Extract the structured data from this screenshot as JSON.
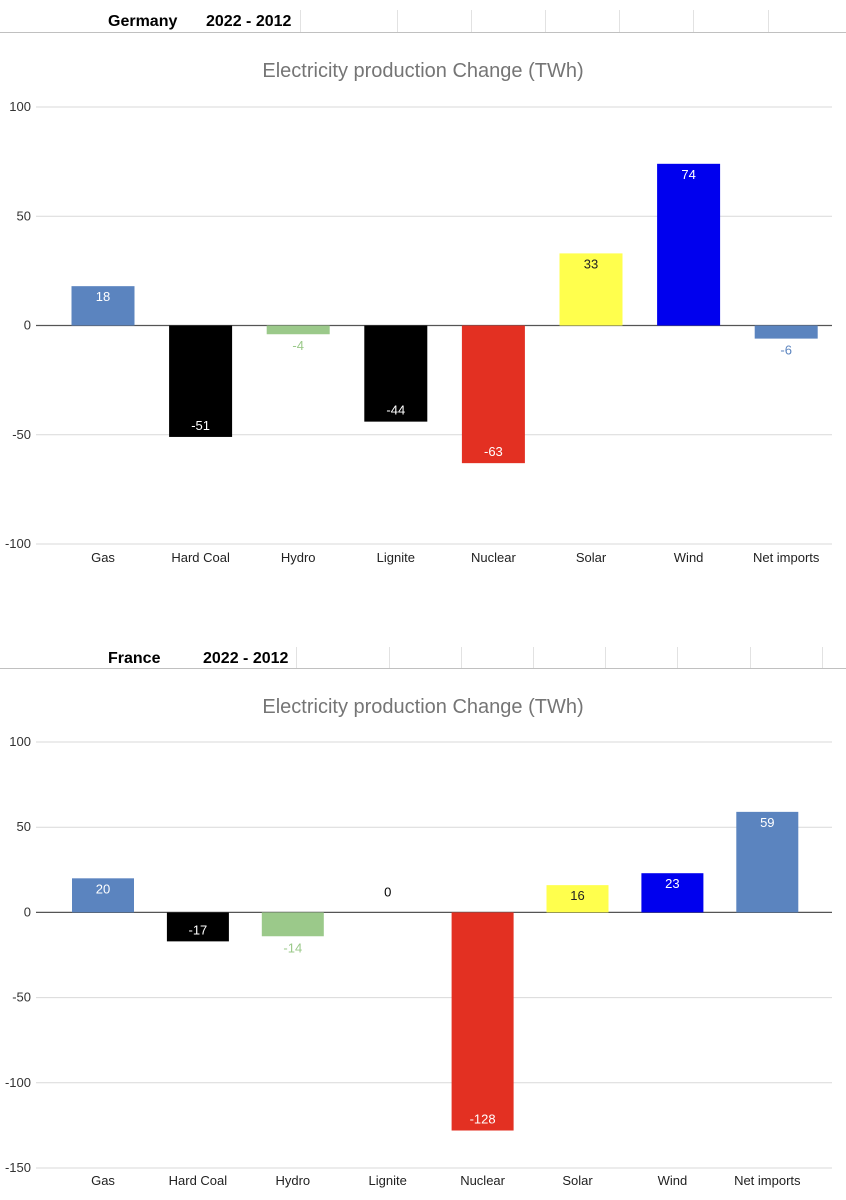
{
  "charts_header": [
    {
      "country": "Germany",
      "period": "2022 - 2012"
    },
    {
      "country": "France",
      "period": "2022 - 2012"
    }
  ],
  "colors": {
    "gas": "#5b84bf",
    "hard_coal": "#000000",
    "hydro": "#9bc98a",
    "lignite": "#000000",
    "nuclear": "#e33022",
    "solar": "#ffff4d",
    "wind": "#0000ee",
    "net_imports": "#5b84bf"
  },
  "chart_data": [
    {
      "type": "bar",
      "title": "Electricity production Change (TWh)",
      "xlabel": "",
      "ylabel": "",
      "categories": [
        "Gas",
        "Hard Coal",
        "Hydro",
        "Lignite",
        "Nuclear",
        "Solar",
        "Wind",
        "Net imports"
      ],
      "values": [
        18,
        -51,
        -4,
        -44,
        -63,
        33,
        74,
        -6
      ],
      "data_labels": [
        "18",
        "-51",
        "-4",
        "-44",
        "-63",
        "33",
        "74",
        "-6"
      ],
      "ylim": [
        -100,
        100
      ],
      "yticks": [
        100,
        50,
        0,
        -50,
        -100
      ],
      "ytick_labels": [
        "100",
        "50",
        "0",
        "-50",
        "-100"
      ],
      "grid": true,
      "legend": "none"
    },
    {
      "type": "bar",
      "title": "Electricity production Change (TWh)",
      "xlabel": "",
      "ylabel": "",
      "categories": [
        "Gas",
        "Hard Coal",
        "Hydro",
        "Lignite",
        "Nuclear",
        "Solar",
        "Wind",
        "Net imports"
      ],
      "values": [
        20,
        -17,
        -14,
        0,
        -128,
        16,
        23,
        59
      ],
      "data_labels": [
        "20",
        "-17",
        "-14",
        "0",
        "-128",
        "16",
        "23",
        "59"
      ],
      "ylim": [
        -150,
        100
      ],
      "yticks": [
        100,
        50,
        0,
        -50,
        -100,
        -150
      ],
      "ytick_labels": [
        "100",
        "50",
        "0",
        "-50",
        "-100",
        "-150"
      ],
      "grid": true,
      "legend": "none"
    }
  ]
}
